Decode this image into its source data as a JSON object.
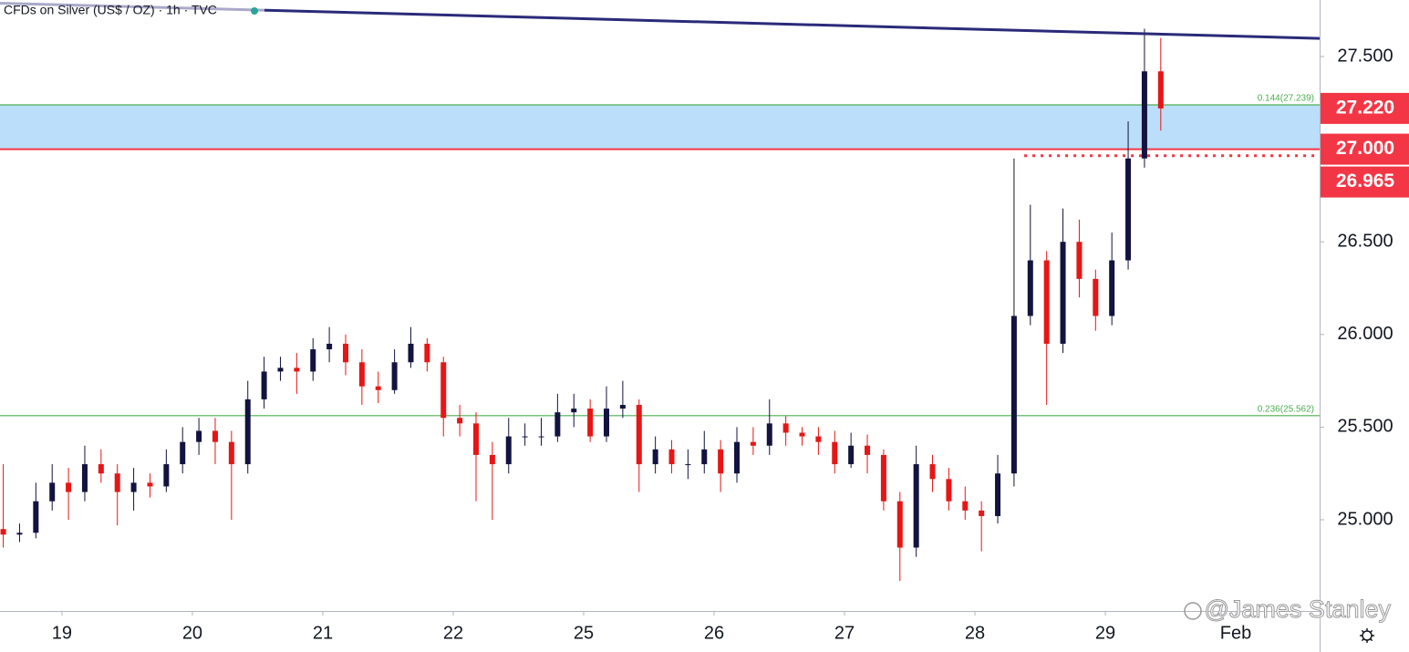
{
  "chart_data": {
    "type": "candlestick",
    "title": "CFDs on Silver (US$ / OZ) · 1h · TVC",
    "watermark": "@James Stanley",
    "up_color": "#131340",
    "down_color": "#e81515",
    "x": [
      -0.45,
      -0.325,
      -0.2,
      -0.075,
      0.05,
      0.175,
      0.3,
      0.425,
      0.55,
      0.675,
      0.8,
      0.925,
      1.05,
      1.175,
      1.3,
      1.425,
      1.55,
      1.675,
      1.8,
      1.925,
      2.05,
      2.175,
      2.3,
      2.425,
      2.55,
      2.675,
      2.8,
      2.925,
      3.05,
      3.175,
      3.3,
      3.425,
      3.55,
      3.675,
      3.8,
      3.925,
      4.05,
      4.175,
      4.3,
      4.425,
      4.55,
      4.675,
      4.8,
      4.925,
      5.05,
      5.175,
      5.3,
      5.425,
      5.55,
      5.675,
      5.8,
      5.925,
      6.05,
      6.175,
      6.3,
      6.425,
      6.55,
      6.675,
      6.8,
      6.925,
      7.05,
      7.175,
      7.3,
      7.425,
      7.55,
      7.675,
      7.8,
      7.925,
      8.05,
      8.175,
      8.3,
      8.425
    ],
    "open": [
      24.95,
      24.92,
      24.93,
      25.1,
      25.2,
      25.15,
      25.3,
      25.25,
      25.15,
      25.2,
      25.18,
      25.3,
      25.42,
      25.48,
      25.42,
      25.3,
      25.65,
      25.8,
      25.82,
      25.8,
      25.92,
      25.95,
      25.85,
      25.72,
      25.7,
      25.85,
      25.95,
      25.85,
      25.55,
      25.52,
      25.35,
      25.3,
      25.45,
      25.45,
      25.45,
      25.58,
      25.6,
      25.45,
      25.6,
      25.62,
      25.3,
      25.38,
      25.3,
      25.3,
      25.38,
      25.25,
      25.42,
      25.4,
      25.52,
      25.47,
      25.45,
      25.42,
      25.3,
      25.4,
      25.35,
      25.1,
      24.85,
      25.3,
      25.22,
      25.1,
      25.05,
      25.02,
      25.25,
      26.1,
      26.4,
      25.95,
      26.5,
      26.3,
      26.1,
      26.4,
      26.95,
      27.42
    ],
    "high": [
      25.3,
      24.98,
      25.2,
      25.3,
      25.28,
      25.4,
      25.38,
      25.3,
      25.28,
      25.25,
      25.38,
      25.5,
      25.55,
      25.55,
      25.48,
      25.75,
      25.88,
      25.88,
      25.9,
      25.98,
      26.04,
      26.0,
      25.92,
      25.8,
      25.92,
      26.04,
      25.98,
      25.88,
      25.62,
      25.58,
      25.42,
      25.55,
      25.52,
      25.55,
      25.68,
      25.68,
      25.65,
      25.72,
      25.75,
      25.65,
      25.45,
      25.43,
      25.38,
      25.48,
      25.43,
      25.5,
      25.5,
      25.65,
      25.56,
      25.5,
      25.5,
      25.48,
      25.47,
      25.46,
      25.38,
      25.15,
      25.4,
      25.35,
      25.28,
      25.18,
      25.1,
      25.35,
      26.95,
      26.7,
      26.45,
      26.68,
      26.62,
      26.35,
      26.55,
      27.15,
      27.65,
      27.6
    ],
    "low": [
      24.85,
      24.88,
      24.9,
      25.05,
      25.0,
      25.1,
      25.2,
      24.97,
      25.05,
      25.12,
      25.15,
      25.25,
      25.35,
      25.3,
      25.0,
      25.25,
      25.6,
      25.75,
      25.68,
      25.75,
      25.85,
      25.78,
      25.62,
      25.63,
      25.68,
      25.82,
      25.8,
      25.45,
      25.45,
      25.1,
      25.0,
      25.25,
      25.4,
      25.4,
      25.42,
      25.5,
      25.42,
      25.42,
      25.55,
      25.15,
      25.25,
      25.25,
      25.22,
      25.25,
      25.15,
      25.2,
      25.35,
      25.35,
      25.4,
      25.4,
      25.35,
      25.25,
      25.28,
      25.25,
      25.05,
      24.67,
      24.8,
      25.15,
      25.05,
      25.0,
      24.83,
      24.98,
      25.18,
      26.05,
      25.62,
      25.9,
      26.2,
      26.02,
      26.05,
      26.35,
      26.9,
      27.1
    ],
    "close": [
      24.92,
      24.93,
      25.1,
      25.2,
      25.15,
      25.3,
      25.25,
      25.15,
      25.2,
      25.18,
      25.3,
      25.42,
      25.48,
      25.42,
      25.3,
      25.65,
      25.8,
      25.82,
      25.8,
      25.92,
      25.95,
      25.85,
      25.72,
      25.7,
      25.85,
      25.95,
      25.85,
      25.55,
      25.52,
      25.35,
      25.3,
      25.45,
      25.45,
      25.45,
      25.58,
      25.6,
      25.45,
      25.6,
      25.62,
      25.3,
      25.38,
      25.3,
      25.3,
      25.38,
      25.25,
      25.42,
      25.4,
      25.52,
      25.47,
      25.45,
      25.42,
      25.3,
      25.4,
      25.35,
      25.1,
      24.85,
      25.3,
      25.22,
      25.1,
      25.05,
      25.02,
      25.25,
      26.1,
      26.4,
      25.95,
      26.5,
      26.3,
      26.1,
      26.4,
      26.95,
      27.42,
      27.22
    ],
    "xlim": [
      -0.475,
      9.643
    ],
    "xticks": [
      {
        "value": 0,
        "label": "19"
      },
      {
        "value": 1,
        "label": "20"
      },
      {
        "value": 2,
        "label": "21"
      },
      {
        "value": 3,
        "label": "22"
      },
      {
        "value": 4,
        "label": "25"
      },
      {
        "value": 5,
        "label": "26"
      },
      {
        "value": 6,
        "label": "27"
      },
      {
        "value": 7,
        "label": "28"
      },
      {
        "value": 8,
        "label": "29"
      },
      {
        "value": 9,
        "label": "Feb"
      }
    ],
    "ylim": [
      24.508,
      27.805
    ],
    "yticks": [
      {
        "value": 25,
        "label": "25.000"
      },
      {
        "value": 25.5,
        "label": "25.500"
      },
      {
        "value": 26,
        "label": "26.000"
      },
      {
        "value": 26.5,
        "label": "26.500"
      },
      {
        "value": 27.5,
        "label": "27.500"
      }
    ],
    "fib_levels": [
      {
        "value": 27.239,
        "label": "0.144(27.239)",
        "color": "#4caf50"
      },
      {
        "value": 25.562,
        "label": "0.236(25.562)",
        "color": "#4caf50"
      }
    ],
    "zone_color": "#bbdefb",
    "support_line": {
      "value": 27.0,
      "color": "#f23645"
    },
    "dotted_line": {
      "value": 26.965,
      "x_start": 7.378,
      "color": "#f23645"
    },
    "trendline": {
      "x": [
        -0.475,
        9.643
      ],
      "y": [
        27.788,
        27.598
      ],
      "color": "#2a2a7a"
    },
    "price_labels": [
      {
        "value": 27.22,
        "label": "27.220"
      },
      {
        "value": 27.0,
        "label": "27.000"
      },
      {
        "value": 26.965,
        "label": "26.965"
      }
    ],
    "price_label_color": "#f23645"
  }
}
